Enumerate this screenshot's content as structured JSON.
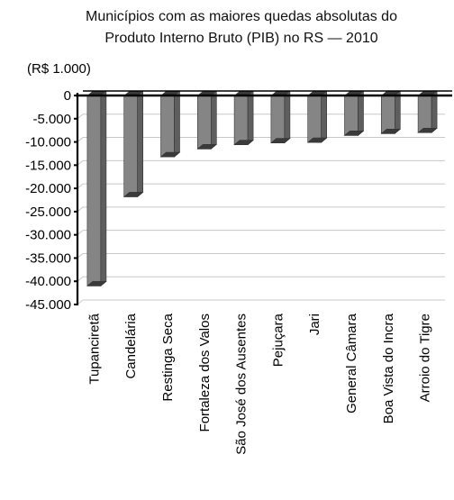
{
  "chart_data": {
    "type": "bar",
    "title_lines": [
      "Municípios com as maiores quedas absolutas do",
      "Produto Interno Bruto (PIB) no RS — 2010"
    ],
    "unit_label": "(R$ 1.000)",
    "categories": [
      "Tupanciretã",
      "Candelária",
      "Restinga Seca",
      "Fortaleza dos Valos",
      "São José dos Ausentes",
      "Pejuçara",
      "Jari",
      "General Câmara",
      "Boa Vista do Incra",
      "Arroio do Tigre"
    ],
    "values": [
      -41000,
      -21800,
      -13200,
      -11500,
      -10600,
      -10200,
      -10100,
      -8600,
      -8200,
      -8000
    ],
    "ylim": [
      -45000,
      0
    ],
    "yticks": [
      0,
      -5000,
      -10000,
      -15000,
      -20000,
      -25000,
      -30000,
      -35000,
      -40000,
      -45000
    ],
    "ytick_labels": [
      "0",
      "-5.000",
      "-10.000",
      "-15.000",
      "-20.000",
      "-25.000",
      "-30.000",
      "-35.000",
      "-40.000",
      "-45.000"
    ],
    "grid": true,
    "colors": {
      "bar_front": "#858585",
      "bar_side": "#5e5e5e",
      "bar_top": "#3a3a3a",
      "grid": "#c8c8c8",
      "axis": "#000000"
    }
  }
}
